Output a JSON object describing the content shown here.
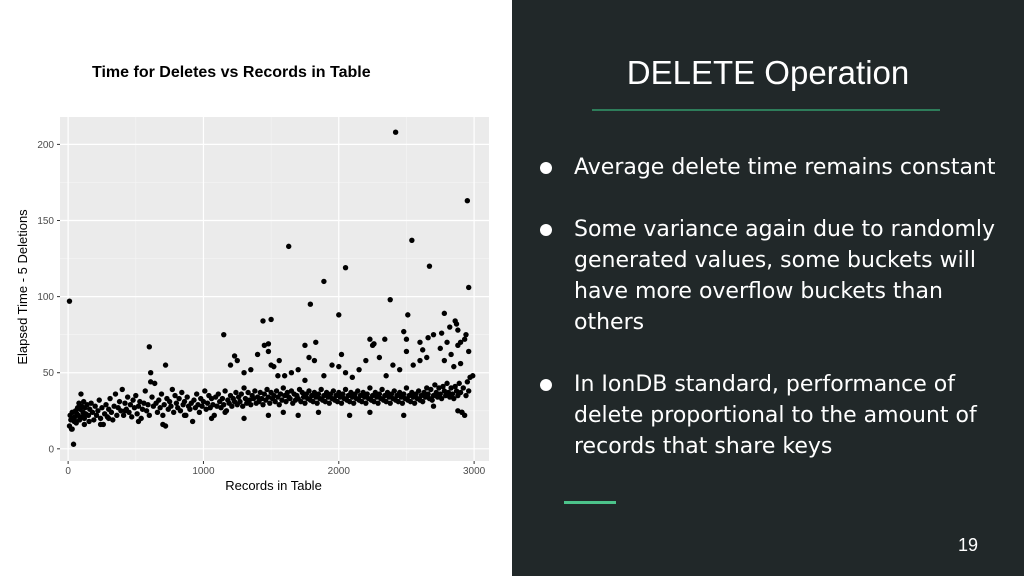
{
  "chart_title": "Time for Deletes vs Records in Table",
  "chart_data": {
    "type": "scatter",
    "xlabel": "Records in Table",
    "ylabel": "Elapsed Time - 5 Deletions",
    "xlim": [
      -60,
      3110
    ],
    "ylim": [
      -8,
      218
    ],
    "xticks": [
      0,
      1000,
      2000,
      3000
    ],
    "yticks": [
      0,
      50,
      100,
      150,
      200
    ],
    "grid": true,
    "points": [
      [
        10,
        15
      ],
      [
        15,
        22
      ],
      [
        20,
        19
      ],
      [
        25,
        13
      ],
      [
        30,
        24
      ],
      [
        35,
        20
      ],
      [
        40,
        3
      ],
      [
        45,
        18
      ],
      [
        50,
        21
      ],
      [
        55,
        25
      ],
      [
        60,
        17
      ],
      [
        65,
        23
      ],
      [
        70,
        27
      ],
      [
        75,
        22
      ],
      [
        80,
        30
      ],
      [
        85,
        19
      ],
      [
        90,
        26
      ],
      [
        95,
        36
      ],
      [
        100,
        28
      ],
      [
        105,
        21
      ],
      [
        110,
        24
      ],
      [
        115,
        31
      ],
      [
        120,
        20
      ],
      [
        125,
        27
      ],
      [
        130,
        23
      ],
      [
        140,
        29
      ],
      [
        150,
        22
      ],
      [
        155,
        18
      ],
      [
        160,
        26
      ],
      [
        170,
        30
      ],
      [
        180,
        24
      ],
      [
        190,
        19
      ],
      [
        200,
        28
      ],
      [
        210,
        22
      ],
      [
        220,
        25
      ],
      [
        230,
        32
      ],
      [
        240,
        20
      ],
      [
        250,
        27
      ],
      [
        260,
        16
      ],
      [
        270,
        23
      ],
      [
        280,
        29
      ],
      [
        290,
        21
      ],
      [
        300,
        26
      ],
      [
        310,
        33
      ],
      [
        320,
        24
      ],
      [
        330,
        19
      ],
      [
        340,
        28
      ],
      [
        350,
        36
      ],
      [
        360,
        22
      ],
      [
        370,
        27
      ],
      [
        380,
        31
      ],
      [
        390,
        25
      ],
      [
        400,
        39
      ],
      [
        410,
        22
      ],
      [
        420,
        30
      ],
      [
        430,
        26
      ],
      [
        440,
        34
      ],
      [
        450,
        24
      ],
      [
        460,
        29
      ],
      [
        470,
        21
      ],
      [
        480,
        32
      ],
      [
        490,
        27
      ],
      [
        500,
        35
      ],
      [
        510,
        23
      ],
      [
        520,
        28
      ],
      [
        530,
        31
      ],
      [
        540,
        20
      ],
      [
        550,
        26
      ],
      [
        560,
        30
      ],
      [
        570,
        38
      ],
      [
        580,
        25
      ],
      [
        590,
        29
      ],
      [
        600,
        22
      ],
      [
        610,
        50
      ],
      [
        620,
        34
      ],
      [
        630,
        28
      ],
      [
        640,
        43
      ],
      [
        650,
        30
      ],
      [
        660,
        24
      ],
      [
        670,
        32
      ],
      [
        680,
        27
      ],
      [
        690,
        36
      ],
      [
        700,
        22
      ],
      [
        710,
        29
      ],
      [
        720,
        15
      ],
      [
        730,
        33
      ],
      [
        740,
        26
      ],
      [
        750,
        31
      ],
      [
        760,
        28
      ],
      [
        770,
        39
      ],
      [
        780,
        24
      ],
      [
        790,
        35
      ],
      [
        800,
        30
      ],
      [
        810,
        27
      ],
      [
        820,
        33
      ],
      [
        830,
        25
      ],
      [
        840,
        37
      ],
      [
        850,
        29
      ],
      [
        860,
        31
      ],
      [
        870,
        22
      ],
      [
        880,
        34
      ],
      [
        890,
        28
      ],
      [
        900,
        26
      ],
      [
        910,
        30
      ],
      [
        920,
        18
      ],
      [
        930,
        32
      ],
      [
        940,
        27
      ],
      [
        950,
        36
      ],
      [
        960,
        29
      ],
      [
        970,
        24
      ],
      [
        980,
        33
      ],
      [
        990,
        28
      ],
      [
        1000,
        31
      ],
      [
        1010,
        38
      ],
      [
        1020,
        26
      ],
      [
        1030,
        30
      ],
      [
        1040,
        35
      ],
      [
        1050,
        27
      ],
      [
        1060,
        33
      ],
      [
        1070,
        29
      ],
      [
        1080,
        22
      ],
      [
        1090,
        34
      ],
      [
        1100,
        28
      ],
      [
        1110,
        36
      ],
      [
        1120,
        31
      ],
      [
        1130,
        27
      ],
      [
        1140,
        33
      ],
      [
        1150,
        29
      ],
      [
        1160,
        38
      ],
      [
        1170,
        25
      ],
      [
        1180,
        32
      ],
      [
        1190,
        30
      ],
      [
        1200,
        35
      ],
      [
        1210,
        28
      ],
      [
        1220,
        33
      ],
      [
        1230,
        31
      ],
      [
        1240,
        37
      ],
      [
        1250,
        29
      ],
      [
        1260,
        34
      ],
      [
        1270,
        31
      ],
      [
        1280,
        36
      ],
      [
        1290,
        28
      ],
      [
        1300,
        40
      ],
      [
        1310,
        33
      ],
      [
        1320,
        30
      ],
      [
        1330,
        37
      ],
      [
        1340,
        32
      ],
      [
        1350,
        29
      ],
      [
        1360,
        35
      ],
      [
        1370,
        33
      ],
      [
        1380,
        38
      ],
      [
        1390,
        30
      ],
      [
        1400,
        34
      ],
      [
        1410,
        31
      ],
      [
        1420,
        37
      ],
      [
        1430,
        33
      ],
      [
        1440,
        29
      ],
      [
        1450,
        36
      ],
      [
        1460,
        32
      ],
      [
        1470,
        39
      ],
      [
        1480,
        34
      ],
      [
        1490,
        30
      ],
      [
        1500,
        37
      ],
      [
        1510,
        33
      ],
      [
        1520,
        35
      ],
      [
        1530,
        31
      ],
      [
        1540,
        38
      ],
      [
        1550,
        34
      ],
      [
        1560,
        29
      ],
      [
        1570,
        36
      ],
      [
        1580,
        32
      ],
      [
        1590,
        40
      ],
      [
        1600,
        35
      ],
      [
        1610,
        31
      ],
      [
        1620,
        37
      ],
      [
        1630,
        34
      ],
      [
        1640,
        33
      ],
      [
        1650,
        38
      ],
      [
        1660,
        30
      ],
      [
        1670,
        36
      ],
      [
        1680,
        32
      ],
      [
        1690,
        35
      ],
      [
        1700,
        33
      ],
      [
        1710,
        39
      ],
      [
        1720,
        31
      ],
      [
        1730,
        37
      ],
      [
        1740,
        34
      ],
      [
        1750,
        30
      ],
      [
        1760,
        36
      ],
      [
        1770,
        33
      ],
      [
        1780,
        38
      ],
      [
        1790,
        32
      ],
      [
        1800,
        35
      ],
      [
        1810,
        31
      ],
      [
        1820,
        37
      ],
      [
        1830,
        34
      ],
      [
        1840,
        30
      ],
      [
        1850,
        36
      ],
      [
        1860,
        33
      ],
      [
        1870,
        39
      ],
      [
        1880,
        32
      ],
      [
        1890,
        35
      ],
      [
        1900,
        31
      ],
      [
        1910,
        37
      ],
      [
        1920,
        34
      ],
      [
        1930,
        30
      ],
      [
        1940,
        36
      ],
      [
        1950,
        33
      ],
      [
        1960,
        38
      ],
      [
        1970,
        32
      ],
      [
        1980,
        35
      ],
      [
        1990,
        31
      ],
      [
        2000,
        37
      ],
      [
        2010,
        34
      ],
      [
        2020,
        30
      ],
      [
        2030,
        36
      ],
      [
        2040,
        33
      ],
      [
        2050,
        39
      ],
      [
        2060,
        32
      ],
      [
        2070,
        35
      ],
      [
        2080,
        31
      ],
      [
        2090,
        37
      ],
      [
        2100,
        34
      ],
      [
        2110,
        30
      ],
      [
        2120,
        36
      ],
      [
        2130,
        33
      ],
      [
        2140,
        38
      ],
      [
        2150,
        32
      ],
      [
        2160,
        35
      ],
      [
        2170,
        31
      ],
      [
        2180,
        37
      ],
      [
        2190,
        34
      ],
      [
        2200,
        30
      ],
      [
        2210,
        36
      ],
      [
        2220,
        33
      ],
      [
        2230,
        40
      ],
      [
        2240,
        32
      ],
      [
        2250,
        35
      ],
      [
        2260,
        31
      ],
      [
        2270,
        37
      ],
      [
        2280,
        34
      ],
      [
        2290,
        30
      ],
      [
        2300,
        36
      ],
      [
        2310,
        33
      ],
      [
        2320,
        39
      ],
      [
        2330,
        32
      ],
      [
        2340,
        35
      ],
      [
        2350,
        31
      ],
      [
        2360,
        37
      ],
      [
        2370,
        34
      ],
      [
        2380,
        30
      ],
      [
        2390,
        36
      ],
      [
        2400,
        33
      ],
      [
        2410,
        38
      ],
      [
        2420,
        32
      ],
      [
        2430,
        35
      ],
      [
        2440,
        31
      ],
      [
        2450,
        37
      ],
      [
        2460,
        34
      ],
      [
        2470,
        30
      ],
      [
        2480,
        36
      ],
      [
        2490,
        33
      ],
      [
        2500,
        40
      ],
      [
        2510,
        32
      ],
      [
        2520,
        35
      ],
      [
        2530,
        31
      ],
      [
        2540,
        37
      ],
      [
        2550,
        34
      ],
      [
        2560,
        30
      ],
      [
        2570,
        36
      ],
      [
        2580,
        33
      ],
      [
        2590,
        38
      ],
      [
        2600,
        32
      ],
      [
        2610,
        35
      ],
      [
        2620,
        31
      ],
      [
        2630,
        37
      ],
      [
        2640,
        34
      ],
      [
        2650,
        40
      ],
      [
        2660,
        36
      ],
      [
        2670,
        33
      ],
      [
        2680,
        39
      ],
      [
        2690,
        32
      ],
      [
        2700,
        35
      ],
      [
        2710,
        42
      ],
      [
        2720,
        37
      ],
      [
        2730,
        34
      ],
      [
        2740,
        40
      ],
      [
        2750,
        36
      ],
      [
        2760,
        33
      ],
      [
        2770,
        41
      ],
      [
        2780,
        38
      ],
      [
        2790,
        35
      ],
      [
        2800,
        43
      ],
      [
        2810,
        37
      ],
      [
        2820,
        34
      ],
      [
        2830,
        40
      ],
      [
        2840,
        36
      ],
      [
        2850,
        33
      ],
      [
        2860,
        41
      ],
      [
        2870,
        38
      ],
      [
        2880,
        35
      ],
      [
        2890,
        43
      ],
      [
        2900,
        37
      ],
      [
        2910,
        24
      ],
      [
        2920,
        40
      ],
      [
        2930,
        22
      ],
      [
        2940,
        35
      ],
      [
        2950,
        44
      ],
      [
        2960,
        38
      ],
      [
        2970,
        47
      ],
      [
        30,
        13
      ],
      [
        55,
        18
      ],
      [
        120,
        16
      ],
      [
        240,
        16
      ],
      [
        300,
        20
      ],
      [
        420,
        25
      ],
      [
        520,
        18
      ],
      [
        700,
        16
      ],
      [
        860,
        22
      ],
      [
        1060,
        20
      ],
      [
        1160,
        24
      ],
      [
        1300,
        20
      ],
      [
        1480,
        22
      ],
      [
        1590,
        24
      ],
      [
        1700,
        22
      ],
      [
        1850,
        24
      ],
      [
        2080,
        22
      ],
      [
        2230,
        24
      ],
      [
        2480,
        22
      ],
      [
        2700,
        28
      ],
      [
        2880,
        25
      ],
      [
        2910,
        24
      ],
      [
        1500,
        55
      ],
      [
        1550,
        48
      ],
      [
        1650,
        50
      ],
      [
        1700,
        52
      ],
      [
        1750,
        45
      ],
      [
        1780,
        60
      ],
      [
        1820,
        58
      ],
      [
        1890,
        48
      ],
      [
        1950,
        55
      ],
      [
        2000,
        54
      ],
      [
        2050,
        50
      ],
      [
        2100,
        47
      ],
      [
        2150,
        52
      ],
      [
        2200,
        58
      ],
      [
        2250,
        68
      ],
      [
        2300,
        60
      ],
      [
        2350,
        48
      ],
      [
        2400,
        55
      ],
      [
        2450,
        52
      ],
      [
        2500,
        64
      ],
      [
        2550,
        55
      ],
      [
        2600,
        58
      ],
      [
        2650,
        60
      ],
      [
        2700,
        75
      ],
      [
        2750,
        66
      ],
      [
        2780,
        58
      ],
      [
        2800,
        70
      ],
      [
        2830,
        62
      ],
      [
        2850,
        54
      ],
      [
        2880,
        68
      ],
      [
        2900,
        56
      ],
      [
        2930,
        72
      ],
      [
        2960,
        64
      ],
      [
        2990,
        48
      ],
      [
        1200,
        55
      ],
      [
        1250,
        58
      ],
      [
        1300,
        50
      ],
      [
        1350,
        52
      ],
      [
        1400,
        62
      ],
      [
        1450,
        68
      ],
      [
        1480,
        64
      ],
      [
        1520,
        54
      ],
      [
        1560,
        58
      ],
      [
        1600,
        48
      ],
      [
        600,
        67
      ],
      [
        610,
        44
      ],
      [
        720,
        55
      ],
      [
        1150,
        75
      ],
      [
        1230,
        61
      ],
      [
        1440,
        84
      ],
      [
        1480,
        69
      ],
      [
        1500,
        85
      ],
      [
        1750,
        68
      ],
      [
        1830,
        70
      ],
      [
        2020,
        62
      ],
      [
        2230,
        72
      ],
      [
        2260,
        69
      ],
      [
        2340,
        72
      ],
      [
        2480,
        77
      ],
      [
        2500,
        72
      ],
      [
        2600,
        70
      ],
      [
        2620,
        65
      ],
      [
        2660,
        73
      ],
      [
        2760,
        76
      ],
      [
        2780,
        89
      ],
      [
        2820,
        80
      ],
      [
        2860,
        84
      ],
      [
        2870,
        82
      ],
      [
        2880,
        78
      ],
      [
        2900,
        70
      ],
      [
        2940,
        75
      ],
      [
        10,
        97
      ],
      [
        1630,
        133
      ],
      [
        1790,
        95
      ],
      [
        1890,
        110
      ],
      [
        2000,
        88
      ],
      [
        2050,
        119
      ],
      [
        2380,
        98
      ],
      [
        2420,
        208
      ],
      [
        2510,
        88
      ],
      [
        2540,
        137
      ],
      [
        2670,
        120
      ],
      [
        2950,
        163
      ],
      [
        2960,
        106
      ]
    ]
  },
  "slide": {
    "title": "DELETE Operation",
    "bullets": [
      "Average delete time remains constant",
      "Some variance again due to randomly generated values, some buckets will have more overflow buckets than others",
      "In IonDB standard, performance of delete proportional to the amount of records that share keys"
    ],
    "page_number": "19",
    "accent_color": "#4cc38a",
    "panel_color": "#212829"
  }
}
